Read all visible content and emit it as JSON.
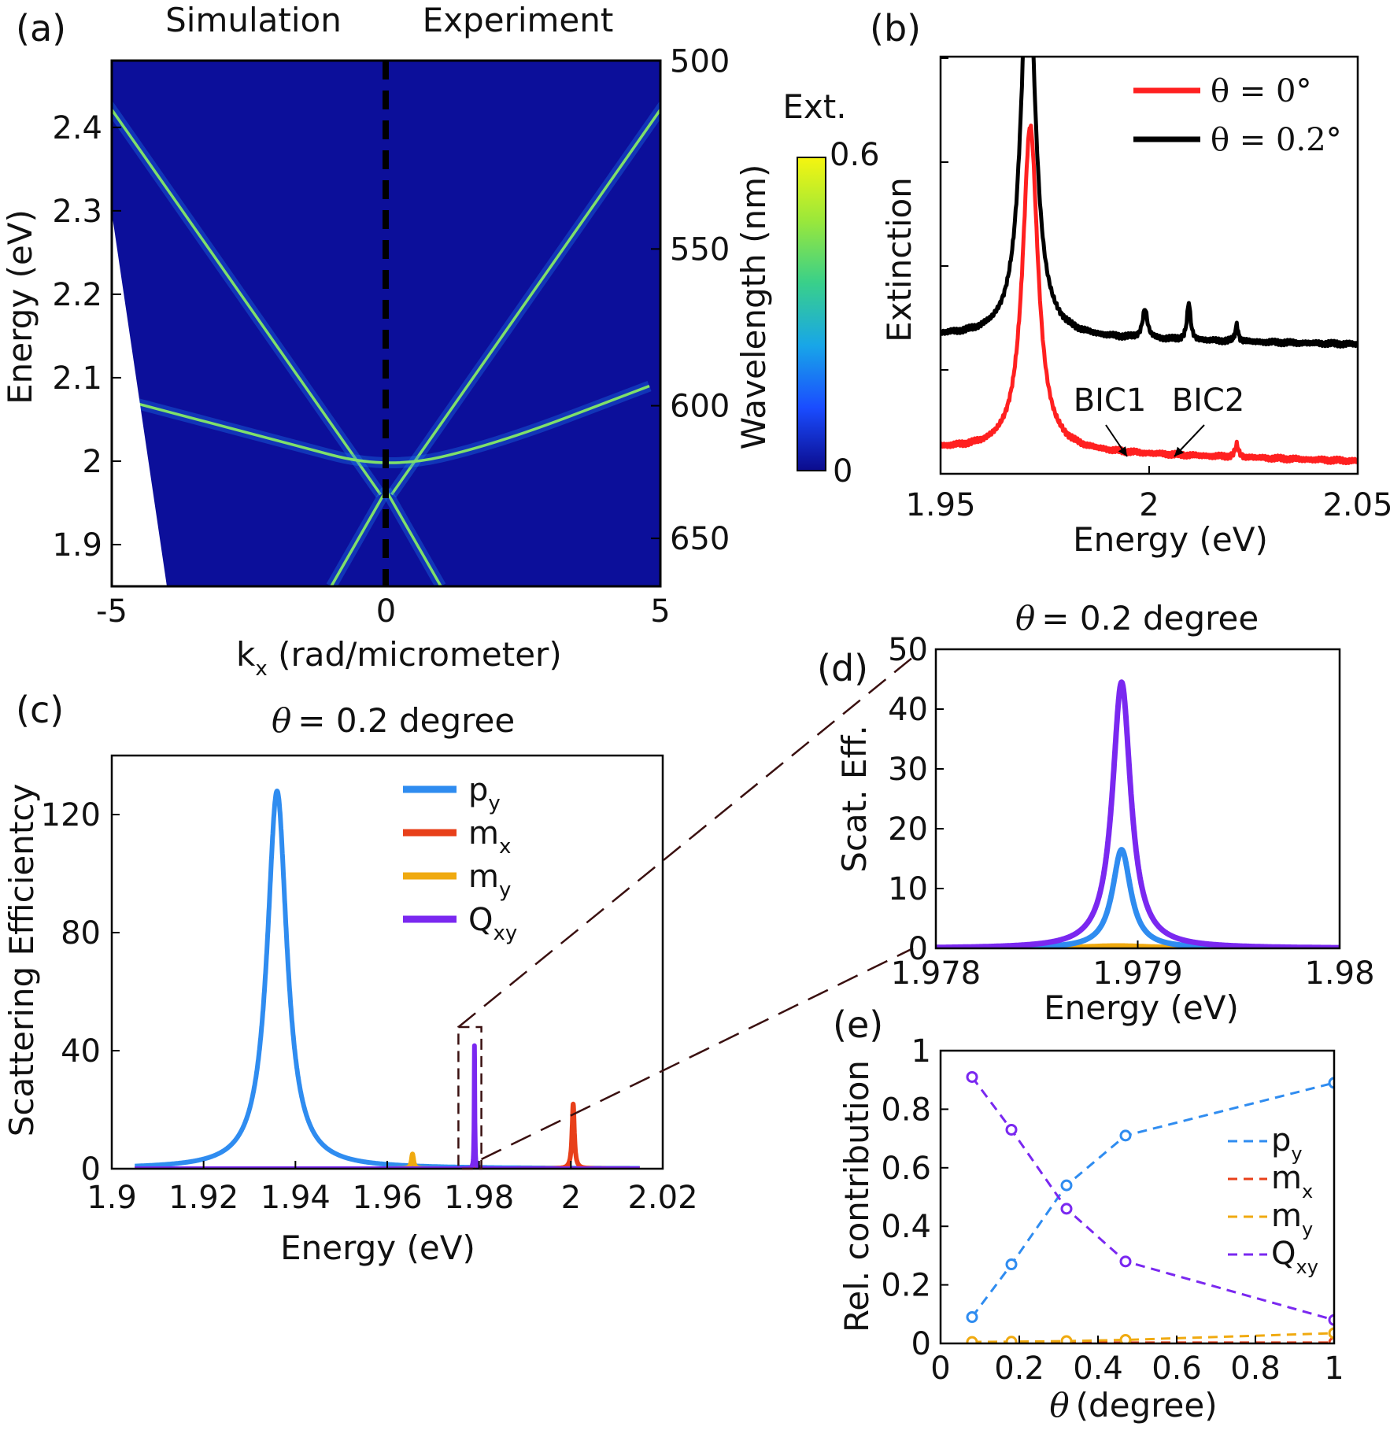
{
  "chart_data": [
    {
      "panel": "(a)",
      "type": "heatmap",
      "column_titles": [
        "Simulation",
        "Experiment"
      ],
      "xlabel_main": "k",
      "xlabel_sub": "x",
      "xlabel_rest": " (rad/micrometer)",
      "ylabel": "Energy (eV)",
      "right_label": "Wavelength (nm)",
      "xlim": [
        -5,
        5
      ],
      "ylim": [
        1.85,
        2.48
      ],
      "xticks": [
        "-5",
        "0",
        "5"
      ],
      "xtick_values": [
        -5,
        0,
        5
      ],
      "yticks": [
        "1.9",
        "2",
        "2.1",
        "2.2",
        "2.3",
        "2.4"
      ],
      "ytick_values": [
        1.9,
        2.0,
        2.1,
        2.2,
        2.3,
        2.4
      ],
      "wavelength_ticks": [
        "500",
        "550",
        "600",
        "650"
      ],
      "wavelength_values": [
        500,
        550,
        600,
        650
      ],
      "colorbar": {
        "title": "Ext.",
        "max": "0.6",
        "min": "0",
        "colors": [
          "#0b0b8c",
          "#1a4cff",
          "#18a6e8",
          "#39d08a",
          "#9be83a",
          "#f5f510"
        ]
      },
      "background_color": "#0c0f9a",
      "bands": [
        {
          "name": "dispersive-band-left",
          "points": [
            [
              -5.2,
              2.44
            ],
            [
              -0.1,
              1.96
            ]
          ]
        },
        {
          "name": "dispersive-band-right",
          "points": [
            [
              0.1,
              1.96
            ],
            [
              5.2,
              2.44
            ]
          ]
        },
        {
          "name": "lower-band-left",
          "points": [
            [
              -1.0,
              1.85
            ],
            [
              0,
              1.965
            ]
          ]
        },
        {
          "name": "lower-band-right",
          "points": [
            [
              0,
              1.965
            ],
            [
              1.0,
              1.85
            ]
          ]
        },
        {
          "name": "flat-band",
          "points": [
            [
              -4.6,
              2.07
            ],
            [
              -2,
              2.025
            ],
            [
              0,
              1.99
            ],
            [
              2,
              2.02
            ],
            [
              4.8,
              2.09
            ]
          ]
        }
      ]
    },
    {
      "panel": "(b)",
      "type": "line",
      "xlabel": "Energy (eV)",
      "ylabel": "Extinction",
      "xlim": [
        1.95,
        2.05
      ],
      "ylim": [
        0,
        1.0
      ],
      "xticks": [
        "1.95",
        "2",
        "2.05"
      ],
      "xtick_values": [
        1.95,
        2.0,
        2.05
      ],
      "annotations": [
        {
          "text": "BIC1",
          "x": 1.9995,
          "y": 0.02
        },
        {
          "text": "BIC2",
          "x": 2.0075,
          "y": 0.02
        }
      ],
      "series": [
        {
          "name": "θ = 0°",
          "color": "#ff2020",
          "base": 0.06,
          "baseline_end": 0.03,
          "peaks": [
            {
              "x0": 1.9715,
              "amp": 0.78,
              "w": 0.0022
            },
            {
              "x0": 2.021,
              "amp": 0.03,
              "w": 0.0005
            }
          ]
        },
        {
          "name": "θ = 0.2°",
          "color": "#000000",
          "base": 0.33,
          "baseline_end": 0.31,
          "peaks": [
            {
              "x0": 1.971,
              "amp": 0.92,
              "w": 0.0021
            },
            {
              "x0": 1.999,
              "amp": 0.07,
              "w": 0.0007
            },
            {
              "x0": 2.0095,
              "amp": 0.09,
              "w": 0.0005
            },
            {
              "x0": 2.021,
              "amp": 0.04,
              "w": 0.0004
            }
          ]
        }
      ]
    },
    {
      "panel": "(c)",
      "type": "line",
      "title": "= 0.2 degree",
      "title_symbol": "θ",
      "xlabel": "Energy (eV)",
      "ylabel": "Scattering Efficientcy",
      "xlim": [
        1.9,
        2.02
      ],
      "ylim": [
        0,
        140
      ],
      "xticks": [
        "1.9",
        "1.92",
        "1.94",
        "1.96",
        "1.98",
        "2",
        "2.02"
      ],
      "xtick_values": [
        1.9,
        1.92,
        1.94,
        1.96,
        1.98,
        2.0,
        2.02
      ],
      "yticks": [
        "0",
        "40",
        "80",
        "120"
      ],
      "ytick_values": [
        0,
        40,
        80,
        120
      ],
      "data_range": [
        1.905,
        2.015
      ],
      "series": [
        {
          "name": "p",
          "sub": "y",
          "color": "#2f8cf0",
          "peaks": [
            {
              "x0": 1.936,
              "amp": 128,
              "w": 0.0026
            }
          ]
        },
        {
          "name": "m",
          "sub": "x",
          "color": "#e8401a",
          "peaks": [
            {
              "x0": 2.0005,
              "amp": 22,
              "w": 0.0003
            }
          ]
        },
        {
          "name": "m",
          "sub": "y",
          "color": "#f0aa10",
          "peaks": [
            {
              "x0": 1.9655,
              "amp": 5,
              "w": 0.0003
            }
          ]
        },
        {
          "name": "Q",
          "sub": "xy",
          "color": "#7a28f0",
          "peaks": [
            {
              "x0": 1.979,
              "amp": 42,
              "w": 8e-05
            }
          ]
        }
      ],
      "zoom_box": {
        "x": [
          1.9755,
          1.9805
        ],
        "y": [
          0,
          48
        ]
      }
    },
    {
      "panel": "(d)",
      "type": "line",
      "title": "= 0.2 degree",
      "title_symbol": "θ",
      "xlabel": "Energy (eV)",
      "ylabel": "Scat. Eff.",
      "xlim": [
        1.978,
        1.98
      ],
      "ylim": [
        0,
        50
      ],
      "xticks": [
        "1.978",
        "1.979",
        "1.98"
      ],
      "xtick_values": [
        1.978,
        1.979,
        1.98
      ],
      "yticks": [
        "0",
        "10",
        "20",
        "30",
        "40",
        "50"
      ],
      "ytick_values": [
        0,
        10,
        20,
        30,
        40,
        50
      ],
      "series": [
        {
          "name": "Q",
          "sub": "xy",
          "color": "#7a28f0",
          "peaks": [
            {
              "x0": 1.97892,
              "amp": 44.5,
              "w": 5.5e-05
            }
          ]
        },
        {
          "name": "p",
          "sub": "y",
          "color": "#2f8cf0",
          "peaks": [
            {
              "x0": 1.97892,
              "amp": 16.5,
              "w": 5.5e-05
            }
          ]
        },
        {
          "name": "m",
          "sub": "y",
          "color": "#f0aa10",
          "peaks": [
            {
              "x0": 1.9789,
              "amp": 0.4,
              "w": 0.0002
            }
          ]
        }
      ]
    },
    {
      "panel": "(e)",
      "type": "line",
      "xlabel": "(degree)",
      "xlabel_symbol": "θ",
      "ylabel": "Rel. contribution",
      "xlim": [
        0,
        1
      ],
      "ylim": [
        0,
        1
      ],
      "xticks": [
        "0",
        "0.2",
        "0.4",
        "0.6",
        "0.8",
        "1"
      ],
      "xtick_values": [
        0,
        0.2,
        0.4,
        0.6,
        0.8,
        1
      ],
      "yticks": [
        "0",
        "0.2",
        "0.4",
        "0.6",
        "0.8",
        "1"
      ],
      "ytick_values": [
        0,
        0.2,
        0.4,
        0.6,
        0.8,
        1
      ],
      "series": [
        {
          "name": "p",
          "sub": "y",
          "color": "#2f8cf0",
          "x": [
            0.08,
            0.18,
            0.32,
            0.47,
            1.0
          ],
          "y": [
            0.09,
            0.27,
            0.54,
            0.71,
            0.89
          ]
        },
        {
          "name": "m",
          "sub": "x",
          "color": "#e8401a",
          "x": [
            0.08,
            0.18,
            0.32,
            0.47,
            1.0
          ],
          "y": [
            0.002,
            0.002,
            0.003,
            0.003,
            0.003
          ]
        },
        {
          "name": "m",
          "sub": "y",
          "color": "#f0aa10",
          "x": [
            0.08,
            0.18,
            0.32,
            0.47,
            1.0
          ],
          "y": [
            0.005,
            0.006,
            0.008,
            0.012,
            0.035
          ]
        },
        {
          "name": "Q",
          "sub": "xy",
          "color": "#7a28f0",
          "x": [
            0.08,
            0.18,
            0.32,
            0.47,
            1.0
          ],
          "y": [
            0.91,
            0.73,
            0.46,
            0.28,
            0.08
          ]
        }
      ]
    }
  ]
}
